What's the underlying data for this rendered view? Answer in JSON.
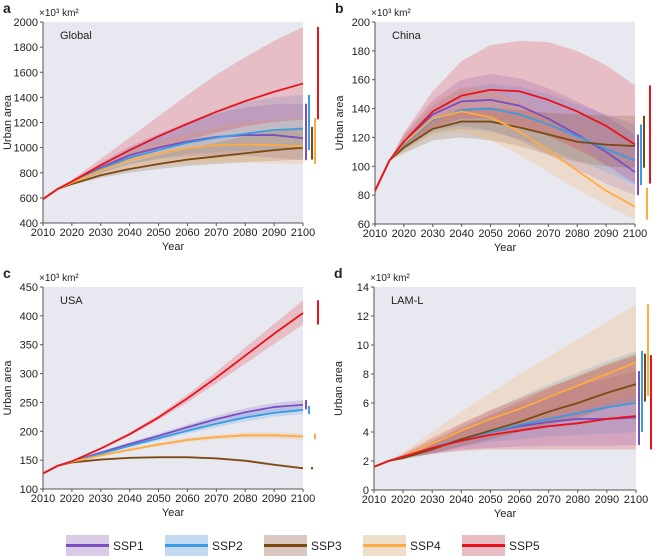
{
  "chart_data": [
    {
      "type": "line",
      "panel_letter": "a",
      "title": "Global",
      "unit": "×10³ km²",
      "xlabel": "Year",
      "ylabel": "Urban area",
      "xlim": [
        2010,
        2100
      ],
      "ylim": [
        400,
        2000
      ],
      "xticks": [
        2010,
        2020,
        2030,
        2040,
        2050,
        2060,
        2070,
        2080,
        2090,
        2100
      ],
      "yticks": [
        400,
        600,
        800,
        1000,
        1200,
        1400,
        1600,
        1800,
        2000
      ],
      "x": [
        2010,
        2015,
        2020,
        2030,
        2040,
        2050,
        2060,
        2070,
        2080,
        2090,
        2100
      ],
      "series": [
        {
          "name": "SSP1",
          "values": [
            590,
            670,
            720,
            840,
            940,
            1000,
            1050,
            1085,
            1100,
            1100,
            1075
          ],
          "lower": [
            590,
            670,
            710,
            800,
            870,
            910,
            930,
            935,
            935,
            920,
            900
          ],
          "upper": [
            590,
            670,
            735,
            880,
            1010,
            1110,
            1200,
            1270,
            1320,
            1345,
            1350
          ]
        },
        {
          "name": "SSP2",
          "values": [
            590,
            670,
            720,
            830,
            920,
            980,
            1040,
            1080,
            1110,
            1140,
            1150
          ],
          "lower": [
            590,
            670,
            712,
            800,
            870,
            915,
            950,
            965,
            975,
            980,
            980
          ],
          "upper": [
            590,
            670,
            735,
            870,
            990,
            1100,
            1200,
            1290,
            1360,
            1400,
            1420
          ]
        },
        {
          "name": "SSP3",
          "values": [
            590,
            670,
            710,
            780,
            830,
            870,
            905,
            930,
            955,
            980,
            1000
          ],
          "lower": [
            590,
            670,
            700,
            760,
            800,
            830,
            855,
            870,
            885,
            895,
            905
          ],
          "upper": [
            590,
            670,
            725,
            810,
            880,
            940,
            990,
            1040,
            1090,
            1130,
            1165
          ]
        },
        {
          "name": "SSP4",
          "values": [
            590,
            670,
            720,
            820,
            900,
            955,
            995,
            1020,
            1025,
            1020,
            1010
          ],
          "lower": [
            590,
            670,
            705,
            780,
            830,
            860,
            875,
            880,
            880,
            875,
            870
          ],
          "upper": [
            590,
            670,
            735,
            860,
            970,
            1050,
            1110,
            1160,
            1200,
            1220,
            1235
          ]
        },
        {
          "name": "SSP5",
          "values": [
            590,
            670,
            730,
            860,
            980,
            1090,
            1190,
            1285,
            1370,
            1445,
            1510
          ],
          "lower": [
            590,
            670,
            720,
            820,
            910,
            990,
            1060,
            1120,
            1170,
            1205,
            1225
          ],
          "upper": [
            590,
            670,
            745,
            910,
            1080,
            1250,
            1420,
            1580,
            1720,
            1850,
            1960
          ]
        }
      ]
    },
    {
      "type": "line",
      "panel_letter": "b",
      "title": "China",
      "unit": "×10³ km²",
      "xlabel": "Year",
      "ylabel": "Urban area",
      "xlim": [
        2010,
        2100
      ],
      "ylim": [
        60,
        200
      ],
      "xticks": [
        2010,
        2020,
        2030,
        2040,
        2050,
        2060,
        2070,
        2080,
        2090,
        2100
      ],
      "yticks": [
        60,
        80,
        100,
        120,
        140,
        160,
        180,
        200
      ],
      "x": [
        2010,
        2015,
        2020,
        2030,
        2040,
        2050,
        2060,
        2070,
        2080,
        2090,
        2100
      ],
      "series": [
        {
          "name": "SSP1",
          "values": [
            83,
            104,
            117,
            136,
            145,
            146,
            142,
            133,
            122,
            110,
            96
          ],
          "lower": [
            83,
            104,
            112,
            125,
            128,
            125,
            118,
            108,
            98,
            88,
            80
          ],
          "upper": [
            83,
            104,
            122,
            146,
            160,
            164,
            161,
            154,
            145,
            135,
            122
          ]
        },
        {
          "name": "SSP2",
          "values": [
            83,
            104,
            115,
            132,
            139,
            140,
            136,
            129,
            121,
            112,
            104
          ],
          "lower": [
            83,
            104,
            111,
            123,
            126,
            124,
            119,
            112,
            104,
            96,
            87
          ],
          "upper": [
            83,
            104,
            120,
            142,
            154,
            157,
            155,
            150,
            143,
            136,
            129
          ]
        },
        {
          "name": "SSP3",
          "values": [
            83,
            104,
            113,
            126,
            131,
            131,
            127,
            122,
            117,
            115,
            114
          ],
          "lower": [
            83,
            104,
            109,
            118,
            120,
            118,
            114,
            108,
            103,
            100,
            99
          ],
          "upper": [
            83,
            104,
            117,
            132,
            140,
            141,
            139,
            137,
            136,
            135,
            135
          ]
        },
        {
          "name": "SSP4",
          "values": [
            83,
            104,
            116,
            133,
            138,
            134,
            124,
            111,
            97,
            83,
            72
          ],
          "lower": [
            83,
            104,
            110,
            122,
            124,
            118,
            108,
            96,
            84,
            73,
            63
          ],
          "upper": [
            83,
            104,
            121,
            144,
            155,
            153,
            145,
            133,
            117,
            100,
            85
          ]
        },
        {
          "name": "SSP5",
          "values": [
            83,
            104,
            117,
            138,
            149,
            153,
            152,
            146,
            138,
            128,
            115
          ],
          "lower": [
            83,
            104,
            112,
            127,
            133,
            133,
            128,
            121,
            112,
            101,
            88
          ],
          "upper": [
            83,
            104,
            123,
            152,
            173,
            184,
            187,
            186,
            180,
            170,
            156
          ]
        }
      ]
    },
    {
      "type": "line",
      "panel_letter": "c",
      "title": "USA",
      "unit": "×10³ km²",
      "xlabel": "Year",
      "ylabel": "Urban area",
      "xlim": [
        2010,
        2100
      ],
      "ylim": [
        100,
        450
      ],
      "xticks": [
        2010,
        2020,
        2030,
        2040,
        2050,
        2060,
        2070,
        2080,
        2090,
        2100
      ],
      "yticks": [
        100,
        150,
        200,
        250,
        300,
        350,
        400,
        450
      ],
      "x": [
        2010,
        2015,
        2020,
        2030,
        2040,
        2050,
        2060,
        2070,
        2080,
        2090,
        2100
      ],
      "series": [
        {
          "name": "SSP1",
          "values": [
            127,
            140,
            148,
            163,
            178,
            192,
            207,
            221,
            233,
            242,
            246
          ],
          "lower": [
            127,
            140,
            147,
            161,
            175,
            188,
            202,
            215,
            226,
            234,
            238
          ],
          "upper": [
            127,
            140,
            149,
            165,
            181,
            196,
            212,
            227,
            240,
            249,
            254
          ]
        },
        {
          "name": "SSP2",
          "values": [
            127,
            140,
            147,
            161,
            175,
            188,
            201,
            213,
            224,
            232,
            237
          ],
          "lower": [
            127,
            140,
            146,
            159,
            172,
            184,
            196,
            207,
            217,
            225,
            230
          ],
          "upper": [
            127,
            140,
            148,
            163,
            178,
            192,
            206,
            219,
            231,
            239,
            244
          ]
        },
        {
          "name": "SSP3",
          "values": [
            127,
            140,
            146,
            151,
            154,
            155,
            155,
            153,
            149,
            142,
            136
          ],
          "lower": [
            127,
            140,
            145,
            150,
            153,
            153,
            153,
            151,
            147,
            140,
            134
          ],
          "upper": [
            127,
            140,
            147,
            152,
            155,
            157,
            157,
            155,
            151,
            144,
            138
          ]
        },
        {
          "name": "SSP4",
          "values": [
            127,
            140,
            147,
            158,
            168,
            177,
            185,
            190,
            193,
            193,
            191
          ],
          "lower": [
            127,
            140,
            146,
            156,
            165,
            174,
            181,
            186,
            188,
            188,
            186
          ],
          "upper": [
            127,
            140,
            148,
            160,
            171,
            180,
            189,
            194,
            198,
            198,
            196
          ]
        },
        {
          "name": "SSP5",
          "values": [
            127,
            140,
            148,
            170,
            195,
            224,
            257,
            293,
            331,
            369,
            405
          ],
          "lower": [
            127,
            140,
            147,
            168,
            192,
            220,
            250,
            283,
            317,
            351,
            385
          ],
          "upper": [
            127,
            140,
            149,
            172,
            198,
            228,
            264,
            303,
            345,
            386,
            427
          ]
        }
      ]
    },
    {
      "type": "line",
      "panel_letter": "d",
      "title": "LAM-L",
      "unit": "×10³ km²",
      "xlabel": "Year",
      "ylabel": "Urban area",
      "xlim": [
        2010,
        2100
      ],
      "ylim": [
        0,
        14
      ],
      "xticks": [
        2010,
        2020,
        2030,
        2040,
        2050,
        2060,
        2070,
        2080,
        2090,
        2100
      ],
      "yticks": [
        0,
        2,
        4,
        6,
        8,
        10,
        12,
        14
      ],
      "x": [
        2010,
        2015,
        2020,
        2030,
        2040,
        2050,
        2060,
        2070,
        2080,
        2090,
        2100
      ],
      "series": [
        {
          "name": "SSP1",
          "values": [
            1.6,
            2.0,
            2.3,
            2.9,
            3.5,
            4.0,
            4.4,
            4.7,
            4.9,
            4.9,
            5.0
          ],
          "lower": [
            1.6,
            2.0,
            2.2,
            2.5,
            2.8,
            2.9,
            3.0,
            3.05,
            3.05,
            3.05,
            3.1
          ],
          "upper": [
            1.6,
            2.0,
            2.4,
            3.3,
            4.2,
            5.0,
            5.8,
            6.5,
            7.2,
            7.7,
            8.2
          ]
        },
        {
          "name": "SSP2",
          "values": [
            1.6,
            2.0,
            2.3,
            2.9,
            3.5,
            4.0,
            4.5,
            4.9,
            5.3,
            5.7,
            6.0
          ],
          "lower": [
            1.6,
            2.0,
            2.2,
            2.6,
            3.0,
            3.3,
            3.5,
            3.7,
            3.8,
            3.9,
            4.0
          ],
          "upper": [
            1.6,
            2.0,
            2.4,
            3.4,
            4.5,
            5.5,
            6.4,
            7.3,
            8.1,
            8.9,
            9.6
          ]
        },
        {
          "name": "SSP3",
          "values": [
            1.6,
            2.0,
            2.2,
            2.8,
            3.5,
            4.1,
            4.7,
            5.4,
            6.0,
            6.7,
            7.3
          ],
          "lower": [
            1.6,
            2.0,
            2.1,
            2.5,
            3.0,
            3.5,
            4.0,
            4.5,
            5.0,
            5.6,
            6.1
          ],
          "upper": [
            1.6,
            2.0,
            2.4,
            3.3,
            4.3,
            5.2,
            6.1,
            7.0,
            7.9,
            8.7,
            9.4
          ]
        },
        {
          "name": "SSP4",
          "values": [
            1.6,
            2.0,
            2.3,
            3.2,
            4.1,
            4.9,
            5.6,
            6.4,
            7.2,
            8.0,
            8.8
          ],
          "lower": [
            1.6,
            2.0,
            2.2,
            2.7,
            3.3,
            3.8,
            4.3,
            4.9,
            5.5,
            6.0,
            6.5
          ],
          "upper": [
            1.6,
            2.0,
            2.6,
            4.0,
            5.4,
            6.7,
            8.0,
            9.2,
            10.4,
            11.6,
            12.8
          ]
        },
        {
          "name": "SSP5",
          "values": [
            1.6,
            2.0,
            2.3,
            2.9,
            3.4,
            3.8,
            4.1,
            4.4,
            4.6,
            4.9,
            5.1
          ],
          "lower": [
            1.6,
            2.0,
            2.2,
            2.5,
            2.7,
            2.8,
            2.8,
            2.8,
            2.8,
            2.8,
            2.8
          ],
          "upper": [
            1.6,
            2.0,
            2.5,
            3.6,
            4.6,
            5.5,
            6.3,
            7.1,
            7.8,
            8.6,
            9.3
          ]
        }
      ]
    }
  ],
  "legend": {
    "placement": "bottom",
    "items": [
      {
        "label": "SSP1",
        "color": "#7a4fc0",
        "band": "#dacbe6"
      },
      {
        "label": "SSP2",
        "color": "#3b9be2",
        "band": "#c3d9ef"
      },
      {
        "label": "SSP3",
        "color": "#7b4a12",
        "band": "#d8c8bf"
      },
      {
        "label": "SSP4",
        "color": "#ffab40",
        "band": "#eedfcc"
      },
      {
        "label": "SSP5",
        "color": "#e8121c",
        "band": "#e8bcc3"
      }
    ]
  },
  "colors": {
    "plot_background": "#e8e8f1"
  }
}
